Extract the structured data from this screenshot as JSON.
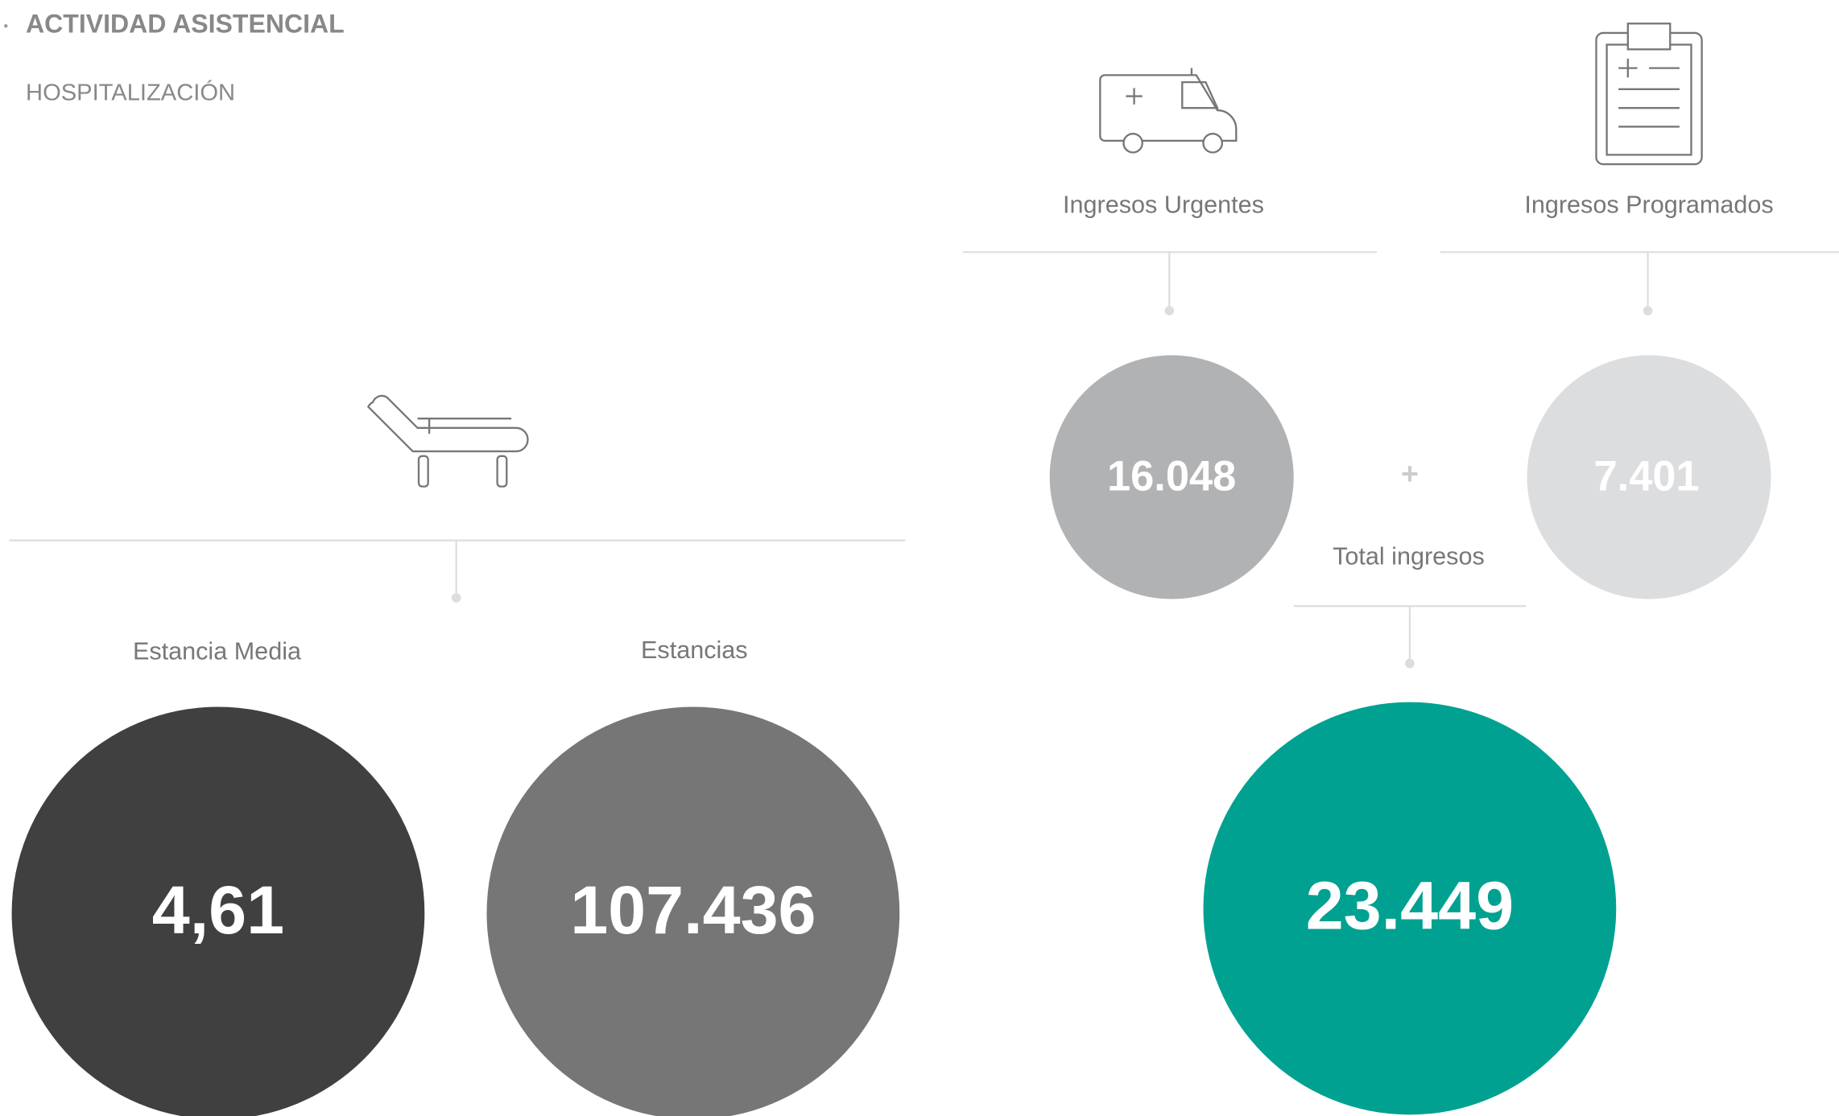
{
  "header": {
    "title": "ACTIVIDAD ASISTENCIAL",
    "subtitle": "HOSPITALIZACIÓN"
  },
  "estancia_media": {
    "label": "Estancia Media",
    "value": "4,61"
  },
  "estancias": {
    "label": "Estancias",
    "value": "107.436"
  },
  "ingresos_urgentes": {
    "label": "Ingresos Urgentes",
    "value": "16.048"
  },
  "ingresos_programados": {
    "label": "Ingresos Programados",
    "value": "7.401"
  },
  "operator": "+",
  "total_ingresos": {
    "label": "Total ingresos",
    "value": "23.449"
  }
}
